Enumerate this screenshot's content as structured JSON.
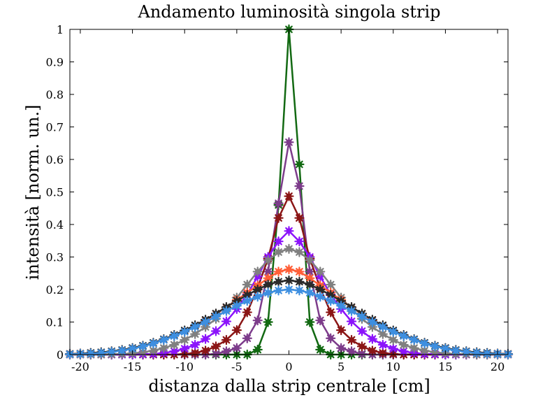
{
  "chart_data": {
    "type": "line",
    "title": "Andamento luminosità singola strip",
    "xlabel": "distanza dalla strip centrale [cm]",
    "ylabel": "intensità [norm. un.]",
    "xlim": [
      -21,
      21
    ],
    "ylim": [
      0,
      1
    ],
    "x_ticks": [
      -20,
      -15,
      -10,
      -5,
      0,
      5,
      10,
      15,
      20
    ],
    "x_tick_labels": [
      "-20",
      "-15",
      "-10",
      "-5",
      "0",
      "5",
      "10",
      "15",
      "20"
    ],
    "y_ticks": [
      0,
      0.1,
      0.2,
      0.3,
      0.4,
      0.5,
      0.6,
      0.7,
      0.8,
      0.9,
      1
    ],
    "y_tick_labels": [
      "0",
      "0.1",
      "0.2",
      "0.3",
      "0.4",
      "0.5",
      "0.6",
      "0.7",
      "0.8",
      "0.9",
      "1"
    ],
    "grid": false,
    "box": true,
    "marker": "asterisk-filled",
    "x": [
      -21,
      -20,
      -19,
      -18,
      -17,
      -16,
      -15,
      -14,
      -13,
      -12,
      -11,
      -10,
      -9,
      -8,
      -7,
      -6,
      -5,
      -4,
      -3,
      -2,
      -1,
      0,
      1,
      2,
      3,
      4,
      5,
      6,
      7,
      8,
      9,
      10,
      11,
      12,
      13,
      14,
      15,
      16,
      17,
      18,
      19,
      20,
      21
    ],
    "series": [
      {
        "color": "#126912",
        "values": [
          0,
          0,
          0,
          0,
          0,
          0,
          0,
          0,
          0,
          0,
          0,
          0,
          0,
          0,
          0,
          0,
          0,
          0,
          0.015,
          0.1,
          0.46,
          1,
          0.585,
          0.1,
          0.015,
          0,
          0,
          0,
          0,
          0,
          0,
          0,
          0,
          0,
          0,
          0,
          0,
          0,
          0,
          0,
          0,
          0,
          0
        ]
      },
      {
        "color": "#7d3c8b",
        "values": [
          0,
          0,
          0,
          0,
          0,
          0,
          0,
          0,
          0,
          0,
          0,
          0,
          0,
          0,
          0.002,
          0.01,
          0.02,
          0.05,
          0.105,
          0.255,
          0.465,
          0.653,
          0.518,
          0.255,
          0.105,
          0.05,
          0.02,
          0.01,
          0.002,
          0,
          0,
          0,
          0,
          0,
          0,
          0,
          0,
          0,
          0,
          0,
          0,
          0,
          0
        ]
      },
      {
        "color": "#8b1616",
        "values": [
          0,
          0,
          0,
          0,
          0,
          0,
          0,
          0,
          0,
          0,
          0,
          0.002,
          0.005,
          0.012,
          0.025,
          0.045,
          0.075,
          0.13,
          0.205,
          0.295,
          0.42,
          0.487,
          0.42,
          0.295,
          0.205,
          0.13,
          0.075,
          0.045,
          0.025,
          0.012,
          0.005,
          0.002,
          0,
          0,
          0,
          0,
          0,
          0,
          0,
          0,
          0,
          0,
          0
        ]
      },
      {
        "color": "#8c14fb",
        "values": [
          0,
          0,
          0,
          0,
          0,
          0,
          0,
          0.001,
          0.002,
          0.005,
          0.01,
          0.018,
          0.03,
          0.048,
          0.072,
          0.102,
          0.14,
          0.185,
          0.24,
          0.3,
          0.348,
          0.38,
          0.348,
          0.3,
          0.24,
          0.185,
          0.14,
          0.102,
          0.072,
          0.048,
          0.03,
          0.018,
          0.01,
          0.005,
          0.002,
          0.001,
          0,
          0,
          0,
          0,
          0,
          0,
          0
        ]
      },
      {
        "color": "#808080",
        "values": [
          0,
          0,
          0,
          0,
          0.001,
          0.002,
          0.004,
          0.007,
          0.012,
          0.02,
          0.03,
          0.045,
          0.063,
          0.085,
          0.11,
          0.14,
          0.175,
          0.215,
          0.255,
          0.29,
          0.315,
          0.325,
          0.315,
          0.29,
          0.255,
          0.215,
          0.175,
          0.14,
          0.11,
          0.085,
          0.063,
          0.045,
          0.03,
          0.02,
          0.012,
          0.007,
          0.004,
          0.002,
          0.001,
          0,
          0,
          0,
          0
        ]
      },
      {
        "color": "#ff5f38",
        "values": [
          0.002,
          0.003,
          0.004,
          0.006,
          0.009,
          0.013,
          0.019,
          0.026,
          0.035,
          0.046,
          0.058,
          0.072,
          0.088,
          0.105,
          0.125,
          0.145,
          0.168,
          0.19,
          0.212,
          0.235,
          0.255,
          0.262,
          0.255,
          0.235,
          0.212,
          0.19,
          0.168,
          0.145,
          0.125,
          0.105,
          0.088,
          0.072,
          0.058,
          0.046,
          0.035,
          0.026,
          0.019,
          0.013,
          0.009,
          0.006,
          0.004,
          0.003,
          0.002
        ]
      },
      {
        "color": "#2b2b2b",
        "values": [
          0.002,
          0.003,
          0.005,
          0.007,
          0.01,
          0.014,
          0.02,
          0.027,
          0.036,
          0.047,
          0.06,
          0.074,
          0.09,
          0.107,
          0.126,
          0.146,
          0.165,
          0.183,
          0.2,
          0.215,
          0.224,
          0.228,
          0.224,
          0.215,
          0.2,
          0.183,
          0.165,
          0.146,
          0.126,
          0.107,
          0.09,
          0.074,
          0.06,
          0.047,
          0.036,
          0.027,
          0.02,
          0.014,
          0.01,
          0.007,
          0.005,
          0.003,
          0.002
        ]
      },
      {
        "color": "#3e8fe0",
        "values": [
          0.001,
          0.002,
          0.003,
          0.005,
          0.008,
          0.012,
          0.018,
          0.025,
          0.034,
          0.045,
          0.057,
          0.07,
          0.085,
          0.1,
          0.117,
          0.134,
          0.15,
          0.165,
          0.178,
          0.19,
          0.197,
          0.2,
          0.197,
          0.19,
          0.178,
          0.165,
          0.15,
          0.134,
          0.117,
          0.1,
          0.085,
          0.07,
          0.057,
          0.045,
          0.034,
          0.025,
          0.018,
          0.012,
          0.008,
          0.005,
          0.003,
          0.002,
          0.001
        ]
      }
    ]
  }
}
